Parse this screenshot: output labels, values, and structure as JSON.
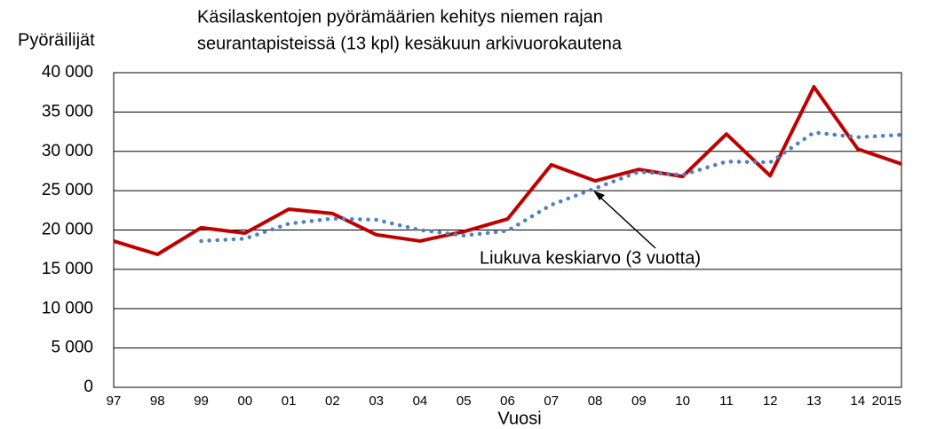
{
  "chart_data": {
    "type": "line",
    "title": [
      "Käsilaskentojen pyörämäärien kehitys niemen rajan",
      "seurantapisteissä (13 kpl) kesäkuun arkivuorokautena"
    ],
    "y_label": "Pyöräilijät",
    "x_label": "Vuosi",
    "annotation": "Liukuva keskiarvo (3 vuotta)",
    "categories": [
      "97",
      "98",
      "99",
      "00",
      "01",
      "02",
      "03",
      "04",
      "05",
      "06",
      "07",
      "08",
      "09",
      "10",
      "11",
      "12",
      "13",
      "14",
      "2015"
    ],
    "series": [
      {
        "color": "#c00000",
        "style": "solid",
        "values": [
          18600,
          16900,
          20300,
          19600,
          22650,
          22100,
          19400,
          18600,
          19800,
          21400,
          28300,
          26250,
          27700,
          26800,
          32200,
          26900,
          38200,
          30300,
          28400
        ]
      },
      {
        "color": "#4f81bd",
        "style": "dotted",
        "values": [
          null,
          null,
          18600,
          18900,
          20800,
          21450,
          21300,
          20000,
          19300,
          19900,
          23200,
          25300,
          27400,
          27000,
          28700,
          28600,
          32400,
          31800,
          32100
        ]
      }
    ],
    "ylim": [
      0,
      40000
    ],
    "yticks": [
      0,
      {
        "value": 5000,
        "label": "5 000"
      },
      {
        "value": 10000,
        "label": "10 000"
      },
      {
        "value": 15000,
        "label": "15 000"
      },
      {
        "value": 20000,
        "label": "20 000"
      },
      {
        "value": 25000,
        "label": "25 000"
      },
      {
        "value": 30000,
        "label": "30 000"
      },
      {
        "value": 35000,
        "label": "35 000"
      },
      {
        "value": 40000,
        "label": "40 000"
      }
    ],
    "grid": true
  }
}
